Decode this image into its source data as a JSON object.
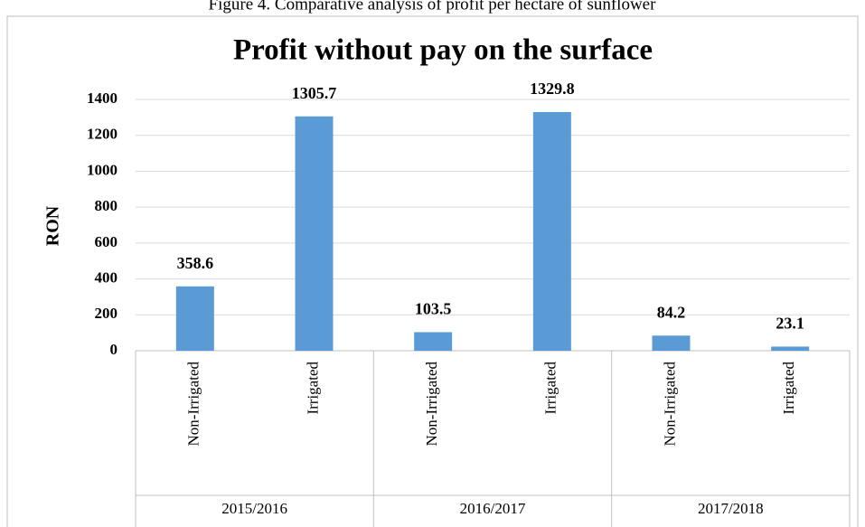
{
  "figure_caption": "Figure 4. Comparative analysis of profit per hectare of sunflower",
  "chart_data": {
    "type": "bar",
    "title": "Profit without pay on the surface",
    "y_label": "RON",
    "categories": [
      "Non-Irrigated",
      "Irrigated",
      "Non-Irrigated",
      "Irrigated",
      "Non-Irrigated",
      "Irrigated"
    ],
    "groups": [
      "2015/2016",
      "2016/2017",
      "2017/2018"
    ],
    "values": [
      358.6,
      1305.7,
      103.5,
      1329.8,
      84.2,
      23.1
    ],
    "color": "#5b9bd5",
    "ylim": [
      0,
      1400
    ],
    "yticks": [
      0,
      200,
      400,
      600,
      800,
      1000,
      1200,
      1400
    ],
    "grid": true
  }
}
